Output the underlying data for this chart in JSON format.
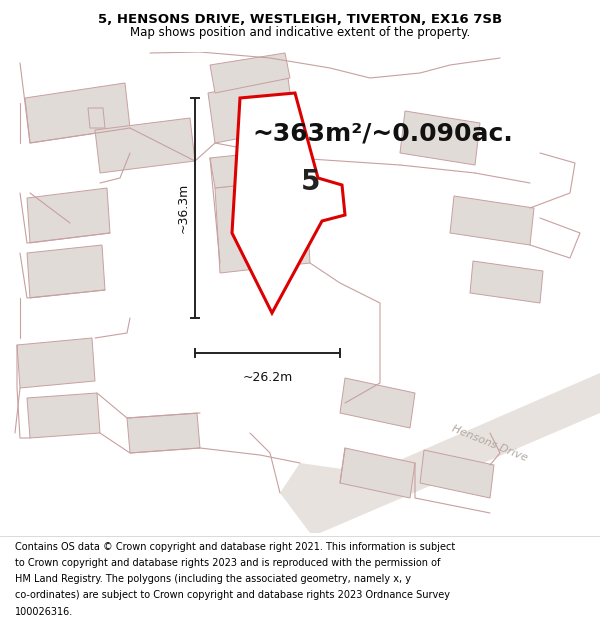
{
  "title_line1": "5, HENSONS DRIVE, WESTLEIGH, TIVERTON, EX16 7SB",
  "title_line2": "Map shows position and indicative extent of the property.",
  "area_text": "~363m²/~0.090ac.",
  "width_label": "~26.2m",
  "height_label": "~36.3m",
  "property_number": "5",
  "road_label": "Hensons Drive",
  "footer_lines": [
    "Contains OS data © Crown copyright and database right 2021. This information is subject",
    "to Crown copyright and database rights 2023 and is reproduced with the permission of",
    "HM Land Registry. The polygons (including the associated geometry, namely x, y",
    "co-ordinates) are subject to Crown copyright and database rights 2023 Ordnance Survey",
    "100026316."
  ],
  "bg_color": "#ffffff",
  "map_bg_color": "#f8f5f3",
  "plot_fill": "#f0ece8",
  "plot_edge_color": "#dd0000",
  "neighbor_fill": "#e0dbd7",
  "neighbor_edge": "#c8a0a0",
  "road_fill": "#e8e2de",
  "road_label_color": "#b0a8a0",
  "dim_line_color": "#222222",
  "title_fontsize": 9.5,
  "subtitle_fontsize": 8.5,
  "area_fontsize": 18,
  "number_fontsize": 20,
  "dim_fontsize": 9,
  "road_fontsize": 8,
  "footer_fontsize": 7.0
}
